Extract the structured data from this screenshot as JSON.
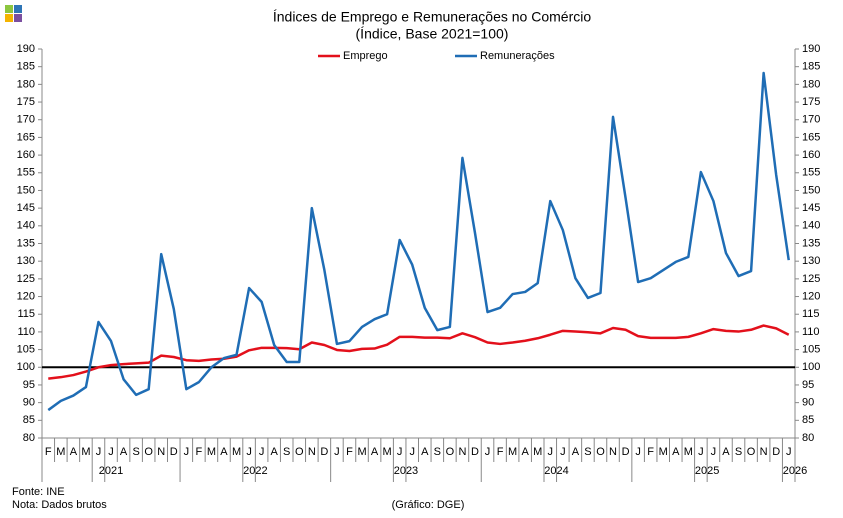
{
  "chart_data": {
    "type": "line",
    "title": "Índices de Emprego e Remunerações no Comércio",
    "subtitle": "(Índice, Base 2021=100)",
    "categories": [
      "F",
      "M",
      "A",
      "M",
      "J",
      "J",
      "A",
      "S",
      "O",
      "N",
      "D",
      "J",
      "F",
      "M",
      "A",
      "M",
      "J",
      "J",
      "A",
      "S",
      "O",
      "N",
      "D",
      "J",
      "F",
      "M",
      "A",
      "M",
      "J",
      "J",
      "A",
      "S",
      "O",
      "N",
      "D",
      "J",
      "F",
      "M",
      "A",
      "M",
      "J",
      "J",
      "A",
      "S",
      "O",
      "N",
      "D",
      "J",
      "F",
      "M",
      "A",
      "M",
      "J",
      "J",
      "A",
      "S",
      "O",
      "N",
      "D",
      "J"
    ],
    "years": [
      "2021",
      "2022",
      "2023",
      "2024",
      "2025",
      "2026"
    ],
    "series": [
      {
        "name": "Emprego",
        "color": "#e3101b",
        "values": [
          96.8,
          97.2,
          97.8,
          98.8,
          100,
          100.6,
          100.9,
          101.1,
          101.3,
          103.3,
          102.9,
          102,
          101.8,
          102.2,
          102.4,
          103,
          104.8,
          105.5,
          105.5,
          105.4,
          105.1,
          107,
          106.3,
          104.9,
          104.6,
          105.2,
          105.3,
          106.4,
          108.6,
          108.6,
          108.4,
          108.4,
          108.2,
          109.6,
          108.5,
          107,
          106.6,
          107,
          107.5,
          108.2,
          109.2,
          110.3,
          110.1,
          109.9,
          109.6,
          111.1,
          110.6,
          108.8,
          108.3,
          108.3,
          108.3,
          108.6,
          109.6,
          110.8,
          110.3,
          110.1,
          110.6,
          111.8,
          111,
          109.2
        ]
      },
      {
        "name": "Remunerações",
        "color": "#1f6db5",
        "values": [
          87.9,
          90.5,
          92,
          94.4,
          112.8,
          107.4,
          96.6,
          92.2,
          93.8,
          132,
          116.5,
          93.8,
          95.8,
          100,
          102.6,
          103.5,
          122.4,
          118.5,
          106.3,
          101.5,
          101.5,
          145,
          127.5,
          106.6,
          107.4,
          111.4,
          113.6,
          115,
          136,
          129,
          116.8,
          110.5,
          111.4,
          159.2,
          138,
          115.6,
          116.8,
          120.7,
          121.3,
          123.8,
          147,
          138.8,
          125.2,
          119.6,
          121,
          170.8,
          147.9,
          124.1,
          125.2,
          127.5,
          129.8,
          131.2,
          155.2,
          147,
          132.3,
          125.8,
          127.2,
          183.2,
          154.4,
          130.3
        ]
      }
    ],
    "reference_line": 100,
    "ylim": [
      80,
      190
    ],
    "yticks": [
      80,
      85,
      90,
      95,
      100,
      105,
      110,
      115,
      120,
      125,
      130,
      135,
      140,
      145,
      150,
      155,
      160,
      165,
      170,
      175,
      180,
      185,
      190
    ],
    "y2lim": [
      80,
      190
    ],
    "y2ticks": [
      80,
      85,
      90,
      95,
      100,
      105,
      110,
      115,
      120,
      125,
      130,
      135,
      140,
      145,
      150,
      155,
      160,
      165,
      170,
      175,
      180,
      185,
      190
    ],
    "legend": "top",
    "source": "Fonte: INE",
    "note": "Nota: Dados brutos",
    "credit": "(Gráfico: DGE)"
  }
}
